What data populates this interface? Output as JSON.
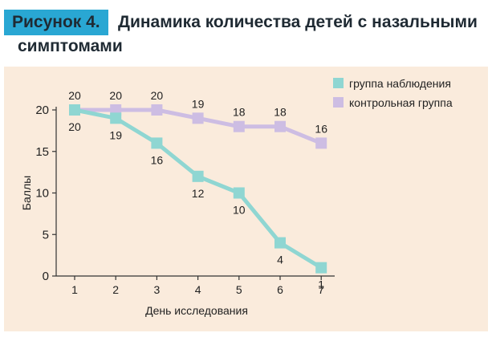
{
  "figure": {
    "label": "Рисунок 4.",
    "title_line1": "Динамика количества детей с назальными",
    "title_line2": "симптомами"
  },
  "colors": {
    "label_bg": "#29a7d3",
    "panel_bg": "#faebdc",
    "observation": "#8fd6d2",
    "control": "#cdbde3"
  },
  "chart_data": {
    "type": "line",
    "title": "Динамика количества детей с назальными симптомами",
    "xlabel": "День исследования",
    "ylabel": "Баллы",
    "x": [
      1,
      2,
      3,
      4,
      5,
      6,
      7
    ],
    "ylim": [
      0,
      20
    ],
    "yticks": [
      0,
      5,
      10,
      15,
      20
    ],
    "grid": false,
    "legend_position": "top-right",
    "series": [
      {
        "name": "группа наблюдения",
        "values": [
          20,
          19,
          16,
          12,
          10,
          4,
          1
        ],
        "label_position": "below",
        "color": "#8fd6d2"
      },
      {
        "name": "контрольная группа",
        "values": [
          20,
          20,
          20,
          19,
          18,
          18,
          16
        ],
        "label_position": "above",
        "color": "#cdbde3"
      }
    ]
  }
}
